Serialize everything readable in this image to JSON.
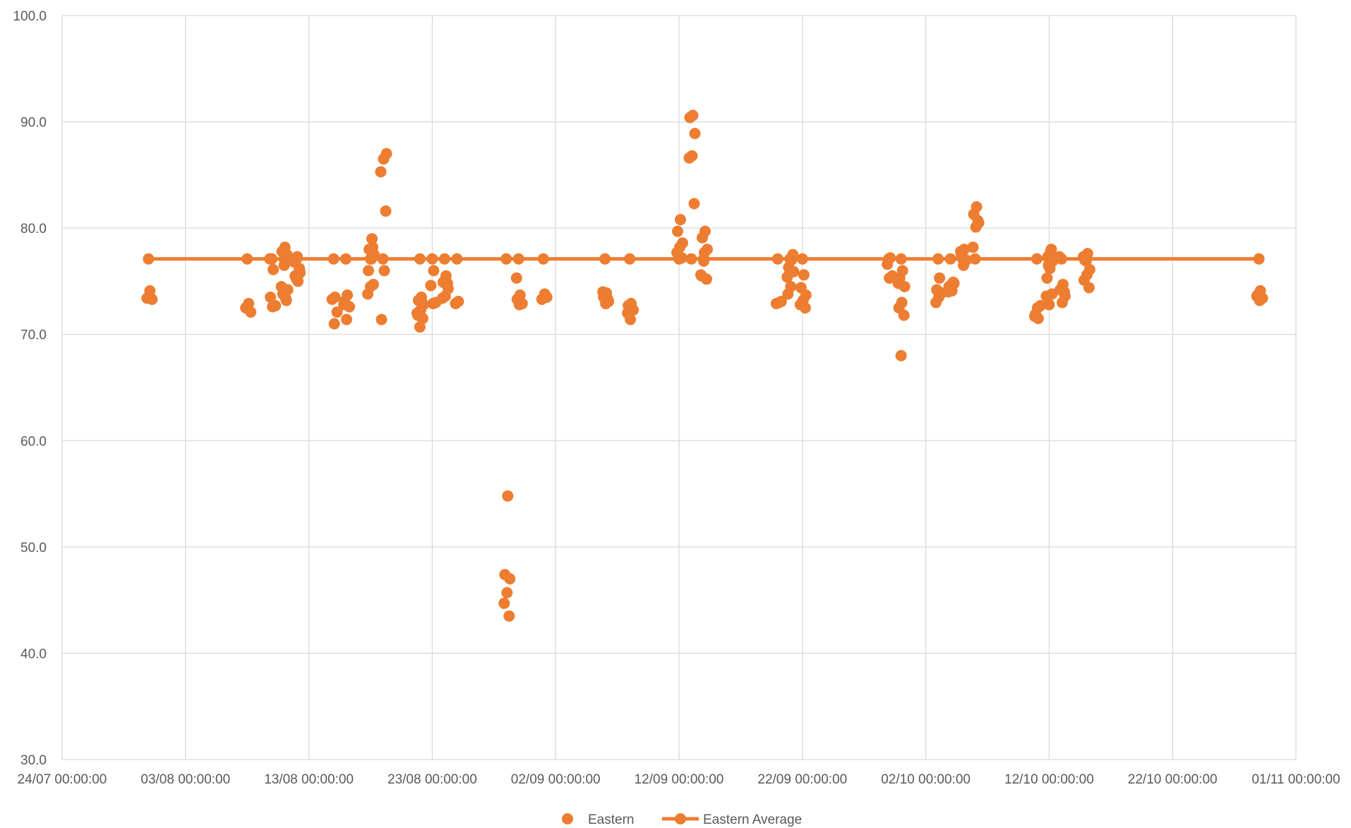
{
  "chart_data": {
    "type": "scatter",
    "x_axis": {
      "type": "date",
      "min": "2000-07-24",
      "max": "2000-11-01",
      "tick_labels": [
        "24/07 00:00:00",
        "03/08 00:00:00",
        "13/08 00:00:00",
        "23/08 00:00:00",
        "02/09 00:00:00",
        "12/09 00:00:00",
        "22/09 00:00:00",
        "02/10 00:00:00",
        "12/10 00:00:00",
        "22/10 00:00:00",
        "01/11 00:00:00"
      ]
    },
    "y_axis": {
      "min": 30,
      "max": 100,
      "tick_labels": [
        "30.0",
        "40.0",
        "50.0",
        "60.0",
        "70.0",
        "80.0",
        "90.0",
        "100.0"
      ]
    },
    "grid": true,
    "legend_position": "bottom",
    "colors": {
      "series": "#ED7D31",
      "grid": "#D9D9D9",
      "text": "#595959"
    },
    "series": [
      {
        "name": "Eastern",
        "type": "scatter",
        "points": [
          [
            "2000-07-31",
            74.1
          ],
          [
            "2000-07-31",
            73.4
          ],
          [
            "2000-07-31",
            73.3
          ],
          [
            "2000-08-08",
            72.9
          ],
          [
            "2000-08-08",
            72.5
          ],
          [
            "2000-08-08",
            72.1
          ],
          [
            "2000-08-10",
            76.1
          ],
          [
            "2000-08-10",
            73.5
          ],
          [
            "2000-08-10",
            72.7
          ],
          [
            "2000-08-10",
            72.6
          ],
          [
            "2000-08-10",
            77.1
          ],
          [
            "2000-08-11",
            73.4
          ],
          [
            "2000-08-11",
            73.8
          ],
          [
            "2000-08-11",
            74.2
          ],
          [
            "2000-08-11",
            78.2
          ],
          [
            "2000-08-11",
            77.8
          ],
          [
            "2000-08-11",
            77.5
          ],
          [
            "2000-08-11",
            76.5
          ],
          [
            "2000-08-11",
            74.5
          ],
          [
            "2000-08-11",
            73.2
          ],
          [
            "2000-08-12",
            75.0
          ],
          [
            "2000-08-12",
            75.5
          ],
          [
            "2000-08-12",
            75.8
          ],
          [
            "2000-08-12",
            77.3
          ],
          [
            "2000-08-12",
            76.8
          ],
          [
            "2000-08-12",
            76.2
          ],
          [
            "2000-08-12",
            75.2
          ],
          [
            "2000-08-15",
            73.5
          ],
          [
            "2000-08-15",
            73.3
          ],
          [
            "2000-08-15",
            72.1
          ],
          [
            "2000-08-15",
            71.0
          ],
          [
            "2000-08-16",
            73.7
          ],
          [
            "2000-08-16",
            73.1
          ],
          [
            "2000-08-16",
            72.6
          ],
          [
            "2000-08-16",
            71.4
          ],
          [
            "2000-08-16",
            72.8
          ],
          [
            "2000-08-18",
            79.0
          ],
          [
            "2000-08-18",
            78.0
          ],
          [
            "2000-08-18",
            77.5
          ],
          [
            "2000-08-18",
            77.1
          ],
          [
            "2000-08-18",
            76.0
          ],
          [
            "2000-08-18",
            74.7
          ],
          [
            "2000-08-18",
            74.5
          ],
          [
            "2000-08-18",
            73.8
          ],
          [
            "2000-08-18",
            78.2
          ],
          [
            "2000-08-19",
            76.0
          ],
          [
            "2000-08-19",
            71.4
          ],
          [
            "2000-08-19",
            87.0
          ],
          [
            "2000-08-19",
            86.5
          ],
          [
            "2000-08-19",
            85.3
          ],
          [
            "2000-08-19",
            81.6
          ],
          [
            "2000-08-22",
            73.5
          ],
          [
            "2000-08-22",
            73.2
          ],
          [
            "2000-08-22",
            72.8
          ],
          [
            "2000-08-22",
            72.3
          ],
          [
            "2000-08-22",
            71.8
          ],
          [
            "2000-08-22",
            71.5
          ],
          [
            "2000-08-22",
            70.7
          ],
          [
            "2000-08-22",
            72.0
          ],
          [
            "2000-08-22",
            73.0
          ],
          [
            "2000-08-23",
            76.0
          ],
          [
            "2000-08-23",
            74.6
          ],
          [
            "2000-08-23",
            73.0
          ],
          [
            "2000-08-23",
            72.9
          ],
          [
            "2000-08-24",
            75.5
          ],
          [
            "2000-08-24",
            74.9
          ],
          [
            "2000-08-24",
            74.3
          ],
          [
            "2000-08-24",
            73.6
          ],
          [
            "2000-08-24",
            73.4
          ],
          [
            "2000-08-24",
            74.8
          ],
          [
            "2000-08-25",
            73.1
          ],
          [
            "2000-08-25",
            72.9
          ],
          [
            "2000-08-29",
            54.8
          ],
          [
            "2000-08-29",
            47.4
          ],
          [
            "2000-08-29",
            47.0
          ],
          [
            "2000-08-29",
            45.7
          ],
          [
            "2000-08-29",
            44.7
          ],
          [
            "2000-08-29",
            43.5
          ],
          [
            "2000-08-30",
            73.7
          ],
          [
            "2000-08-30",
            73.3
          ],
          [
            "2000-08-30",
            72.9
          ],
          [
            "2000-08-30",
            72.8
          ],
          [
            "2000-08-30",
            75.3
          ],
          [
            "2000-09-01",
            73.8
          ],
          [
            "2000-09-01",
            73.3
          ],
          [
            "2000-09-01",
            73.5
          ],
          [
            "2000-09-06",
            73.9
          ],
          [
            "2000-09-06",
            73.5
          ],
          [
            "2000-09-06",
            73.1
          ],
          [
            "2000-09-06",
            72.9
          ],
          [
            "2000-09-06",
            74.0
          ],
          [
            "2000-09-06",
            73.3
          ],
          [
            "2000-09-08",
            72.9
          ],
          [
            "2000-09-08",
            72.7
          ],
          [
            "2000-09-08",
            72.3
          ],
          [
            "2000-09-08",
            71.4
          ],
          [
            "2000-09-08",
            72.0
          ],
          [
            "2000-09-12",
            80.8
          ],
          [
            "2000-09-12",
            79.7
          ],
          [
            "2000-09-12",
            78.6
          ],
          [
            "2000-09-12",
            78.2
          ],
          [
            "2000-09-12",
            77.7
          ],
          [
            "2000-09-12",
            77.2
          ],
          [
            "2000-09-13",
            90.6
          ],
          [
            "2000-09-13",
            90.4
          ],
          [
            "2000-09-13",
            88.9
          ],
          [
            "2000-09-13",
            86.8
          ],
          [
            "2000-09-13",
            86.6
          ],
          [
            "2000-09-13",
            82.3
          ],
          [
            "2000-09-14",
            79.7
          ],
          [
            "2000-09-14",
            79.1
          ],
          [
            "2000-09-14",
            78.0
          ],
          [
            "2000-09-14",
            77.7
          ],
          [
            "2000-09-14",
            75.5
          ],
          [
            "2000-09-14",
            75.2
          ],
          [
            "2000-09-14",
            76.9
          ],
          [
            "2000-09-14",
            75.6
          ],
          [
            "2000-09-20",
            73.0
          ],
          [
            "2000-09-20",
            72.9
          ],
          [
            "2000-09-20",
            73.1
          ],
          [
            "2000-09-21",
            77.0
          ],
          [
            "2000-09-21",
            76.3
          ],
          [
            "2000-09-21",
            75.9
          ],
          [
            "2000-09-21",
            74.5
          ],
          [
            "2000-09-21",
            73.8
          ],
          [
            "2000-09-21",
            77.5
          ],
          [
            "2000-09-21",
            76.0
          ],
          [
            "2000-09-21",
            75.4
          ],
          [
            "2000-09-22",
            75.6
          ],
          [
            "2000-09-22",
            74.4
          ],
          [
            "2000-09-22",
            73.7
          ],
          [
            "2000-09-22",
            73.2
          ],
          [
            "2000-09-22",
            72.8
          ],
          [
            "2000-09-22",
            72.5
          ],
          [
            "2000-09-29",
            77.2
          ],
          [
            "2000-09-29",
            76.6
          ],
          [
            "2000-09-29",
            75.5
          ],
          [
            "2000-09-29",
            75.3
          ],
          [
            "2000-09-30",
            76.0
          ],
          [
            "2000-09-30",
            75.3
          ],
          [
            "2000-09-30",
            74.5
          ],
          [
            "2000-09-30",
            73.0
          ],
          [
            "2000-09-30",
            72.5
          ],
          [
            "2000-09-30",
            71.8
          ],
          [
            "2000-09-30",
            68.0
          ],
          [
            "2000-09-30",
            74.8
          ],
          [
            "2000-10-03",
            75.3
          ],
          [
            "2000-10-03",
            74.2
          ],
          [
            "2000-10-03",
            73.9
          ],
          [
            "2000-10-03",
            73.5
          ],
          [
            "2000-10-03",
            73.0
          ],
          [
            "2000-10-04",
            74.1
          ],
          [
            "2000-10-04",
            74.5
          ],
          [
            "2000-10-04",
            74.8
          ],
          [
            "2000-10-04",
            74.3
          ],
          [
            "2000-10-04",
            74.0
          ],
          [
            "2000-10-04",
            74.9
          ],
          [
            "2000-10-04",
            74.6
          ],
          [
            "2000-10-05",
            78.0
          ],
          [
            "2000-10-05",
            77.4
          ],
          [
            "2000-10-05",
            77.0
          ],
          [
            "2000-10-05",
            76.5
          ],
          [
            "2000-10-05",
            77.8
          ],
          [
            "2000-10-06",
            82.0
          ],
          [
            "2000-10-06",
            81.3
          ],
          [
            "2000-10-06",
            80.5
          ],
          [
            "2000-10-06",
            80.1
          ],
          [
            "2000-10-06",
            78.2
          ],
          [
            "2000-10-06",
            80.7
          ],
          [
            "2000-10-11",
            71.5
          ],
          [
            "2000-10-11",
            71.9
          ],
          [
            "2000-10-11",
            72.7
          ],
          [
            "2000-10-11",
            72.5
          ],
          [
            "2000-10-11",
            71.7
          ],
          [
            "2000-10-12",
            77.8
          ],
          [
            "2000-10-12",
            77.3
          ],
          [
            "2000-10-12",
            76.9
          ],
          [
            "2000-10-12",
            76.2
          ],
          [
            "2000-10-12",
            75.3
          ],
          [
            "2000-10-12",
            73.8
          ],
          [
            "2000-10-12",
            72.8
          ],
          [
            "2000-10-12",
            73.6
          ],
          [
            "2000-10-12",
            78.0
          ],
          [
            "2000-10-12",
            76.5
          ],
          [
            "2000-10-13",
            74.7
          ],
          [
            "2000-10-13",
            74.2
          ],
          [
            "2000-10-13",
            73.6
          ],
          [
            "2000-10-13",
            73.0
          ],
          [
            "2000-10-13",
            77.3
          ],
          [
            "2000-10-13",
            74.0
          ],
          [
            "2000-10-15",
            77.6
          ],
          [
            "2000-10-15",
            77.0
          ],
          [
            "2000-10-15",
            76.1
          ],
          [
            "2000-10-15",
            75.6
          ],
          [
            "2000-10-15",
            75.1
          ],
          [
            "2000-10-15",
            74.4
          ],
          [
            "2000-10-15",
            76.9
          ],
          [
            "2000-10-15",
            77.3
          ],
          [
            "2000-10-29",
            74.1
          ],
          [
            "2000-10-29",
            73.7
          ],
          [
            "2000-10-29",
            73.4
          ],
          [
            "2000-10-29",
            73.2
          ],
          [
            "2000-10-29",
            73.6
          ]
        ]
      },
      {
        "name": "Eastern Average",
        "type": "line",
        "value": 77.1,
        "points": [
          [
            "2000-07-31",
            77.1
          ],
          [
            "2000-08-08",
            77.1
          ],
          [
            "2000-08-10",
            77.1
          ],
          [
            "2000-08-11",
            77.1
          ],
          [
            "2000-08-12",
            77.1
          ],
          [
            "2000-08-15",
            77.1
          ],
          [
            "2000-08-16",
            77.1
          ],
          [
            "2000-08-18",
            77.1
          ],
          [
            "2000-08-19",
            77.1
          ],
          [
            "2000-08-22",
            77.1
          ],
          [
            "2000-08-23",
            77.1
          ],
          [
            "2000-08-24",
            77.1
          ],
          [
            "2000-08-25",
            77.1
          ],
          [
            "2000-08-29",
            77.1
          ],
          [
            "2000-08-30",
            77.1
          ],
          [
            "2000-09-01",
            77.1
          ],
          [
            "2000-09-06",
            77.1
          ],
          [
            "2000-09-08",
            77.1
          ],
          [
            "2000-09-12",
            77.1
          ],
          [
            "2000-09-13",
            77.1
          ],
          [
            "2000-09-14",
            77.1
          ],
          [
            "2000-09-20",
            77.1
          ],
          [
            "2000-09-21",
            77.1
          ],
          [
            "2000-09-22",
            77.1
          ],
          [
            "2000-09-29",
            77.1
          ],
          [
            "2000-09-30",
            77.1
          ],
          [
            "2000-10-03",
            77.1
          ],
          [
            "2000-10-04",
            77.1
          ],
          [
            "2000-10-05",
            77.1
          ],
          [
            "2000-10-06",
            77.1
          ],
          [
            "2000-10-11",
            77.1
          ],
          [
            "2000-10-12",
            77.1
          ],
          [
            "2000-10-13",
            77.1
          ],
          [
            "2000-10-15",
            77.1
          ],
          [
            "2000-10-29",
            77.1
          ]
        ]
      }
    ]
  }
}
